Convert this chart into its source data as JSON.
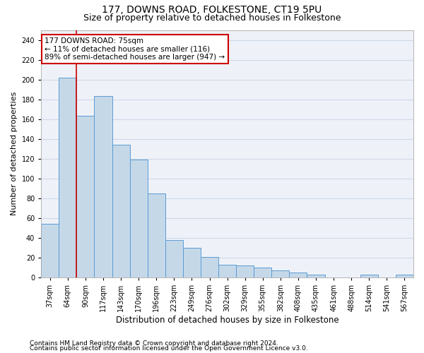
{
  "title1": "177, DOWNS ROAD, FOLKESTONE, CT19 5PU",
  "title2": "Size of property relative to detached houses in Folkestone",
  "xlabel": "Distribution of detached houses by size in Folkestone",
  "ylabel": "Number of detached properties",
  "categories": [
    "37sqm",
    "64sqm",
    "90sqm",
    "117sqm",
    "143sqm",
    "170sqm",
    "196sqm",
    "223sqm",
    "249sqm",
    "276sqm",
    "302sqm",
    "329sqm",
    "355sqm",
    "382sqm",
    "408sqm",
    "435sqm",
    "461sqm",
    "488sqm",
    "514sqm",
    "541sqm",
    "567sqm"
  ],
  "values": [
    54,
    202,
    163,
    183,
    134,
    119,
    85,
    38,
    30,
    21,
    13,
    12,
    10,
    7,
    5,
    3,
    0,
    0,
    3,
    0,
    3
  ],
  "bar_color": "#c5d8e8",
  "bar_edge_color": "#5b9bd5",
  "vline_color": "#cc0000",
  "annotation_line1": "177 DOWNS ROAD: 75sqm",
  "annotation_line2": "← 11% of detached houses are smaller (116)",
  "annotation_line3": "89% of semi-detached houses are larger (947) →",
  "annotation_box_color": "white",
  "annotation_box_edge_color": "#cc0000",
  "ylim": [
    0,
    250
  ],
  "yticks": [
    0,
    20,
    40,
    60,
    80,
    100,
    120,
    140,
    160,
    180,
    200,
    220,
    240
  ],
  "grid_color": "#d0d8e8",
  "background_color": "#eef2f8",
  "footer1": "Contains HM Land Registry data © Crown copyright and database right 2024.",
  "footer2": "Contains public sector information licensed under the Open Government Licence v3.0.",
  "title_fontsize": 10,
  "subtitle_fontsize": 9,
  "xlabel_fontsize": 8.5,
  "ylabel_fontsize": 8,
  "tick_fontsize": 7,
  "footer_fontsize": 6.5,
  "annotation_fontsize": 7.5
}
